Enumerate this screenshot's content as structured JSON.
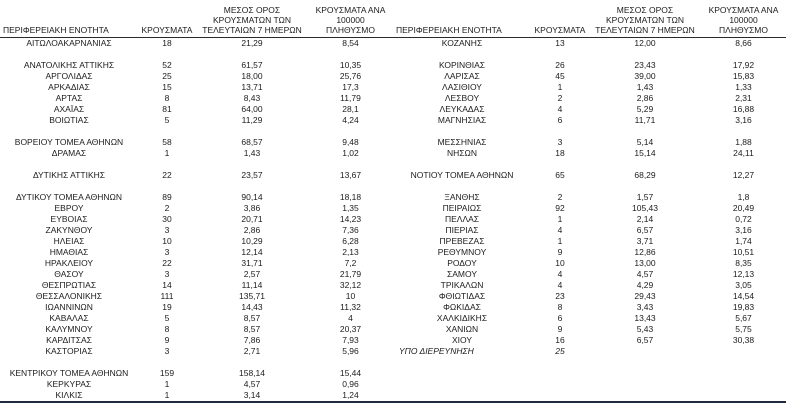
{
  "table": {
    "headers": {
      "region": "ΠΕΡΙΦΕΡΕΙΑΚΗ ΕΝΟΤΗΤΑ",
      "cases": "ΚΡΟΥΣΜΑΤΑ",
      "avg7": "ΜΕΣΟΣ ΟΡΟΣ ΚΡΟΥΣΜΑΤΩΝ ΤΩΝ ΤΕΛΕΥΤΑΙΩΝ 7 ΗΜΕΡΩΝ",
      "per100k": "ΚΡΟΥΣΜΑΤΑ ΑΝΑ 100000 ΠΛΗΘΥΣΜΟ"
    },
    "left_rows": [
      {
        "region": "ΑΙΤΩΛΟΑΚΑΡΝΑΝΙΑΣ",
        "cases": "18",
        "avg7": "21,29",
        "per100k": "8,54"
      },
      {},
      {
        "region": "ΑΝΑΤΟΛΙΚΗΣ ΑΤΤΙΚΗΣ",
        "cases": "52",
        "avg7": "61,57",
        "per100k": "10,35"
      },
      {
        "region": "ΑΡΓΟΛΙΔΑΣ",
        "cases": "25",
        "avg7": "18,00",
        "per100k": "25,76"
      },
      {
        "region": "ΑΡΚΑΔΙΑΣ",
        "cases": "15",
        "avg7": "13,71",
        "per100k": "17,3"
      },
      {
        "region": "ΑΡΤΑΣ",
        "cases": "8",
        "avg7": "8,43",
        "per100k": "11,79"
      },
      {
        "region": "ΑΧΑΪΑΣ",
        "cases": "81",
        "avg7": "64,00",
        "per100k": "28,1"
      },
      {
        "region": "ΒΟΙΩΤΙΑΣ",
        "cases": "5",
        "avg7": "11,29",
        "per100k": "4,24"
      },
      {},
      {
        "region": "ΒΟΡΕΙΟΥ ΤΟΜΕΑ ΑΘΗΝΩΝ",
        "cases": "58",
        "avg7": "68,57",
        "per100k": "9,48"
      },
      {
        "region": "ΔΡΑΜΑΣ",
        "cases": "1",
        "avg7": "1,43",
        "per100k": "1,02"
      },
      {},
      {
        "region": "ΔΥΤΙΚΗΣ ΑΤΤΙΚΗΣ",
        "cases": "22",
        "avg7": "23,57",
        "per100k": "13,67"
      },
      {},
      {
        "region": "ΔΥΤΙΚΟΥ ΤΟΜΕΑ ΑΘΗΝΩΝ",
        "cases": "89",
        "avg7": "90,14",
        "per100k": "18,18"
      },
      {
        "region": "ΕΒΡΟΥ",
        "cases": "2",
        "avg7": "3,86",
        "per100k": "1,35"
      },
      {
        "region": "ΕΥΒΟΙΑΣ",
        "cases": "30",
        "avg7": "20,71",
        "per100k": "14,23"
      },
      {
        "region": "ΖΑΚΥΝΘΟΥ",
        "cases": "3",
        "avg7": "2,86",
        "per100k": "7,36"
      },
      {
        "region": "ΗΛΕΙΑΣ",
        "cases": "10",
        "avg7": "10,29",
        "per100k": "6,28"
      },
      {
        "region": "ΗΜΑΘΙΑΣ",
        "cases": "3",
        "avg7": "12,14",
        "per100k": "2,13"
      },
      {
        "region": "ΗΡΑΚΛΕΙΟΥ",
        "cases": "22",
        "avg7": "31,71",
        "per100k": "7,2"
      },
      {
        "region": "ΘΑΣΟΥ",
        "cases": "3",
        "avg7": "2,57",
        "per100k": "21,79"
      },
      {
        "region": "ΘΕΣΠΡΩΤΙΑΣ",
        "cases": "14",
        "avg7": "11,14",
        "per100k": "32,12"
      },
      {
        "region": "ΘΕΣΣΑΛΟΝΙΚΗΣ",
        "cases": "111",
        "avg7": "135,71",
        "per100k": "10"
      },
      {
        "region": "ΙΩΑΝΝΙΝΩΝ",
        "cases": "19",
        "avg7": "14,43",
        "per100k": "11,32"
      },
      {
        "region": "ΚΑΒΑΛΑΣ",
        "cases": "5",
        "avg7": "8,57",
        "per100k": "4"
      },
      {
        "region": "ΚΑΛΥΜΝΟΥ",
        "cases": "8",
        "avg7": "8,57",
        "per100k": "20,37"
      },
      {
        "region": "ΚΑΡΔΙΤΣΑΣ",
        "cases": "9",
        "avg7": "7,86",
        "per100k": "7,93"
      },
      {
        "region": "ΚΑΣΤΟΡΙΑΣ",
        "cases": "3",
        "avg7": "2,71",
        "per100k": "5,96"
      },
      {},
      {
        "region": "ΚΕΝΤΡΙΚΟΥ ΤΟΜΕΑ ΑΘΗΝΩΝ",
        "cases": "159",
        "avg7": "158,14",
        "per100k": "15,44"
      },
      {
        "region": "ΚΕΡΚΥΡΑΣ",
        "cases": "1",
        "avg7": "4,57",
        "per100k": "0,96"
      },
      {
        "region": "ΚΙΛΚΙΣ",
        "cases": "1",
        "avg7": "3,14",
        "per100k": "1,24"
      }
    ],
    "right_rows": [
      {
        "region": "ΚΟΖΑΝΗΣ",
        "cases": "13",
        "avg7": "12,00",
        "per100k": "8,66"
      },
      {},
      {
        "region": "ΚΟΡΙΝΘΙΑΣ",
        "cases": "26",
        "avg7": "23,43",
        "per100k": "17,92"
      },
      {
        "region": "ΛΑΡΙΣΑΣ",
        "cases": "45",
        "avg7": "39,00",
        "per100k": "15,83"
      },
      {
        "region": "ΛΑΣΙΘΙΟΥ",
        "cases": "1",
        "avg7": "1,43",
        "per100k": "1,33"
      },
      {
        "region": "ΛΕΣΒΟΥ",
        "cases": "2",
        "avg7": "2,86",
        "per100k": "2,31"
      },
      {
        "region": "ΛΕΥΚΑΔΑΣ",
        "cases": "4",
        "avg7": "5,29",
        "per100k": "16,88"
      },
      {
        "region": "ΜΑΓΝΗΣΙΑΣ",
        "cases": "6",
        "avg7": "11,71",
        "per100k": "3,16"
      },
      {},
      {
        "region": "ΜΕΣΣΗΝΙΑΣ",
        "cases": "3",
        "avg7": "5,14",
        "per100k": "1,88"
      },
      {
        "region": "ΝΗΣΩΝ",
        "cases": "18",
        "avg7": "15,14",
        "per100k": "24,11"
      },
      {},
      {
        "region": "ΝΟΤΙΟΥ ΤΟΜΕΑ ΑΘΗΝΩΝ",
        "cases": "65",
        "avg7": "68,29",
        "per100k": "12,27"
      },
      {},
      {
        "region": "ΞΑΝΘΗΣ",
        "cases": "2",
        "avg7": "1,57",
        "per100k": "1,8"
      },
      {
        "region": "ΠΕΙΡΑΙΩΣ",
        "cases": "92",
        "avg7": "105,43",
        "per100k": "20,49"
      },
      {
        "region": "ΠΕΛΛΑΣ",
        "cases": "1",
        "avg7": "2,14",
        "per100k": "0,72"
      },
      {
        "region": "ΠΙΕΡΙΑΣ",
        "cases": "4",
        "avg7": "6,57",
        "per100k": "3,16"
      },
      {
        "region": "ΠΡΕΒΕΖΑΣ",
        "cases": "1",
        "avg7": "3,71",
        "per100k": "1,74"
      },
      {
        "region": "ΡΕΘΥΜΝΟΥ",
        "cases": "9",
        "avg7": "12,86",
        "per100k": "10,51"
      },
      {
        "region": "ΡΟΔΟΥ",
        "cases": "10",
        "avg7": "13,00",
        "per100k": "8,35"
      },
      {
        "region": "ΣΑΜΟΥ",
        "cases": "4",
        "avg7": "4,57",
        "per100k": "12,13"
      },
      {
        "region": "ΤΡΙΚΑΛΩΝ",
        "cases": "4",
        "avg7": "4,29",
        "per100k": "3,05"
      },
      {
        "region": "ΦΘΙΩΤΙΔΑΣ",
        "cases": "23",
        "avg7": "29,43",
        "per100k": "14,54"
      },
      {
        "region": "ΦΩΚΙΔΑΣ",
        "cases": "8",
        "avg7": "3,43",
        "per100k": "19,83"
      },
      {
        "region": "ΧΑΛΚΙΔΙΚΗΣ",
        "cases": "6",
        "avg7": "13,43",
        "per100k": "5,67"
      },
      {
        "region": "ΧΑΝΙΩΝ",
        "cases": "9",
        "avg7": "5,43",
        "per100k": "5,75"
      },
      {
        "region": "ΧΙΟΥ",
        "cases": "16",
        "avg7": "6,57",
        "per100k": "30,38"
      },
      {
        "region": "ΥΠΟ ΔΙΕΡΕΥΝΗΣΗ",
        "cases": "25",
        "avg7": "",
        "per100k": "",
        "italic": true
      },
      {},
      {},
      {},
      {}
    ]
  }
}
